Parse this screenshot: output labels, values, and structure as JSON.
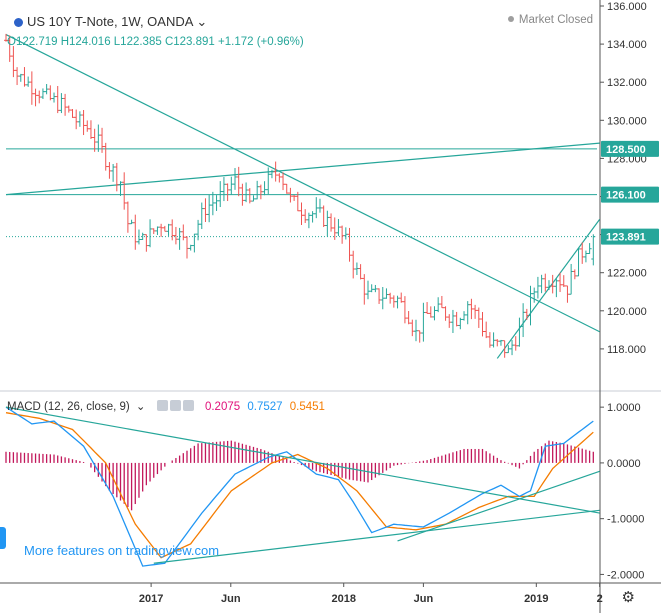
{
  "header": {
    "title": "US 10Y T-Note, 1W, OANDA",
    "ohlc": "O122.719 H124.016 L122.385 C123.891 +1.172 (+0.96%)",
    "market_status": "Market Closed",
    "promo": "More features on tradingview.com"
  },
  "colors": {
    "up": "#26a69a",
    "down": "#ef5350",
    "macd": "#2196f3",
    "signal": "#f57c00",
    "histogram": "#c2185b",
    "trendline": "#26a69a"
  },
  "chart_data": [
    {
      "type": "ohlc",
      "title": "US 10Y T-Note, 1W, OANDA",
      "x_range": [
        "2016-04-01",
        "2019-04-26"
      ],
      "x_ticks": [
        "2017",
        "Jun",
        "2018",
        "Jun",
        "2019",
        "2"
      ],
      "x_tick_dates": [
        "2017-01-01",
        "2017-06-01",
        "2018-01-01",
        "2018-06-01",
        "2019-01-01",
        "2019-05-01"
      ],
      "ylim": [
        116.0,
        136.0
      ],
      "y_ticks": [
        "118.000",
        "120.000",
        "122.000",
        "124.000",
        "126.000",
        "128.000",
        "130.000",
        "132.000",
        "134.000",
        "136.000"
      ],
      "price_key_points": [
        [
          "2016-04-01",
          134.2
        ],
        [
          "2016-04-22",
          132.4
        ],
        [
          "2016-05-20",
          131.8
        ],
        [
          "2016-06-17",
          131.2
        ],
        [
          "2016-07-15",
          130.8
        ],
        [
          "2016-08-12",
          130.0
        ],
        [
          "2016-09-02",
          129.6
        ],
        [
          "2016-09-23",
          128.8
        ],
        [
          "2016-10-14",
          127.6
        ],
        [
          "2016-11-04",
          126.8
        ],
        [
          "2016-11-18",
          124.6
        ],
        [
          "2016-12-09",
          123.6
        ],
        [
          "2016-12-23",
          123.8
        ],
        [
          "2017-01-20",
          124.6
        ],
        [
          "2017-02-17",
          124.2
        ],
        [
          "2017-03-10",
          123.4
        ],
        [
          "2017-04-14",
          125.4
        ],
        [
          "2017-05-12",
          126.0
        ],
        [
          "2017-06-09",
          126.8
        ],
        [
          "2017-07-07",
          125.6
        ],
        [
          "2017-08-04",
          126.6
        ],
        [
          "2017-09-01",
          127.4
        ],
        [
          "2017-09-22",
          125.8
        ],
        [
          "2017-10-20",
          125.2
        ],
        [
          "2017-11-17",
          125.0
        ],
        [
          "2017-12-15",
          124.4
        ],
        [
          "2018-01-05",
          123.6
        ],
        [
          "2018-01-26",
          122.0
        ],
        [
          "2018-02-16",
          120.8
        ],
        [
          "2018-03-16",
          120.8
        ],
        [
          "2018-04-13",
          120.6
        ],
        [
          "2018-05-04",
          119.8
        ],
        [
          "2018-05-18",
          118.8
        ],
        [
          "2018-06-08",
          119.8
        ],
        [
          "2018-07-06",
          120.0
        ],
        [
          "2018-08-03",
          119.6
        ],
        [
          "2018-08-24",
          120.4
        ],
        [
          "2018-09-14",
          119.6
        ],
        [
          "2018-10-05",
          118.2
        ],
        [
          "2018-10-26",
          118.2
        ],
        [
          "2018-11-09",
          117.8
        ],
        [
          "2018-11-30",
          119.0
        ],
        [
          "2018-12-14",
          120.0
        ],
        [
          "2019-01-04",
          121.6
        ],
        [
          "2019-01-18",
          121.6
        ],
        [
          "2019-02-08",
          121.8
        ],
        [
          "2019-03-01",
          121.2
        ],
        [
          "2019-03-22",
          122.8
        ],
        [
          "2019-04-19",
          123.9
        ]
      ],
      "last_bar": {
        "open": 122.719,
        "high": 124.016,
        "low": 122.385,
        "close": 123.891
      },
      "price_labels": [
        {
          "text": "128.500",
          "value": 128.5,
          "color": "#26a69a"
        },
        {
          "text": "126.100",
          "value": 126.1,
          "color": "#26a69a"
        },
        {
          "text": "123.891",
          "value": 123.891,
          "color": "#26a69a"
        }
      ],
      "horizontal_lines": [
        128.5,
        126.1
      ],
      "trend_lines": [
        {
          "from": [
            "2016-04-01",
            134.5
          ],
          "to": [
            "2019-05-01",
            118.9
          ]
        },
        {
          "from": [
            "2016-04-01",
            126.1
          ],
          "to": [
            "2019-05-01",
            128.8
          ]
        },
        {
          "from": [
            "2018-10-19",
            117.5
          ],
          "to": [
            "2019-05-01",
            124.8
          ]
        }
      ]
    },
    {
      "type": "macd",
      "legend": "MACD (12, 26, close, 9)",
      "values": {
        "histogram": "0.2075",
        "macd": "0.7527",
        "signal": "0.5451"
      },
      "ylim": [
        -2.1,
        1.2
      ],
      "y_ticks": [
        "1.0000",
        "0.0000",
        "-1.0000",
        "-2.0000"
      ],
      "macd_points": [
        [
          "2016-04-01",
          1.0
        ],
        [
          "2016-05-20",
          0.7
        ],
        [
          "2016-07-01",
          0.75
        ],
        [
          "2016-08-26",
          0.3
        ],
        [
          "2016-10-21",
          -0.6
        ],
        [
          "2016-12-16",
          -1.85
        ],
        [
          "2017-01-27",
          -1.8
        ],
        [
          "2017-04-07",
          -0.9
        ],
        [
          "2017-06-09",
          -0.2
        ],
        [
          "2017-08-11",
          0.1
        ],
        [
          "2017-09-15",
          0.2
        ],
        [
          "2017-11-10",
          -0.2
        ],
        [
          "2017-12-22",
          -0.3
        ],
        [
          "2018-01-19",
          -0.7
        ],
        [
          "2018-02-23",
          -1.25
        ],
        [
          "2018-04-06",
          -1.1
        ],
        [
          "2018-06-01",
          -1.15
        ],
        [
          "2018-07-20",
          -0.9
        ],
        [
          "2018-09-21",
          -0.55
        ],
        [
          "2018-10-26",
          -0.4
        ],
        [
          "2018-11-30",
          -0.6
        ],
        [
          "2018-12-21",
          -0.5
        ],
        [
          "2019-01-18",
          0.3
        ],
        [
          "2019-02-22",
          0.35
        ],
        [
          "2019-04-19",
          0.75
        ]
      ],
      "signal_points": [
        [
          "2016-04-01",
          0.9
        ],
        [
          "2016-06-03",
          0.8
        ],
        [
          "2016-08-05",
          0.6
        ],
        [
          "2016-10-07",
          0.0
        ],
        [
          "2016-12-02",
          -1.1
        ],
        [
          "2017-01-20",
          -1.7
        ],
        [
          "2017-03-17",
          -1.45
        ],
        [
          "2017-06-02",
          -0.5
        ],
        [
          "2017-08-18",
          0.0
        ],
        [
          "2017-10-06",
          0.15
        ],
        [
          "2017-12-01",
          -0.1
        ],
        [
          "2018-01-26",
          -0.5
        ],
        [
          "2018-03-23",
          -1.15
        ],
        [
          "2018-05-18",
          -1.2
        ],
        [
          "2018-07-13",
          -1.1
        ],
        [
          "2018-09-14",
          -0.8
        ],
        [
          "2018-11-09",
          -0.6
        ],
        [
          "2018-12-28",
          -0.6
        ],
        [
          "2019-02-01",
          -0.1
        ],
        [
          "2019-04-19",
          0.55
        ]
      ],
      "histogram_points": [
        [
          "2016-04-01",
          0.2
        ],
        [
          "2016-07-01",
          0.15
        ],
        [
          "2016-09-02",
          0.0
        ],
        [
          "2016-10-14",
          -0.5
        ],
        [
          "2016-11-25",
          -0.85
        ],
        [
          "2016-12-23",
          -0.4
        ],
        [
          "2017-02-03",
          0.0
        ],
        [
          "2017-03-31",
          0.35
        ],
        [
          "2017-06-02",
          0.4
        ],
        [
          "2017-07-28",
          0.25
        ],
        [
          "2017-09-08",
          0.1
        ],
        [
          "2017-11-10",
          -0.15
        ],
        [
          "2018-01-12",
          -0.3
        ],
        [
          "2018-02-16",
          -0.35
        ],
        [
          "2018-04-06",
          -0.05
        ],
        [
          "2018-06-08",
          0.05
        ],
        [
          "2018-08-17",
          0.25
        ],
        [
          "2018-09-21",
          0.25
        ],
        [
          "2018-10-26",
          0.05
        ],
        [
          "2018-11-30",
          -0.1
        ],
        [
          "2018-12-28",
          0.2
        ],
        [
          "2019-01-25",
          0.4
        ],
        [
          "2019-02-22",
          0.35
        ],
        [
          "2019-04-19",
          0.2
        ]
      ],
      "trend_lines": [
        {
          "from": [
            "2016-04-01",
            1.0
          ],
          "to": [
            "2019-05-01",
            -0.9
          ]
        },
        {
          "from": [
            "2017-01-06",
            -1.8
          ],
          "to": [
            "2019-05-01",
            -0.85
          ]
        },
        {
          "from": [
            "2018-04-13",
            -1.4
          ],
          "to": [
            "2019-05-01",
            -0.15
          ]
        }
      ]
    }
  ]
}
